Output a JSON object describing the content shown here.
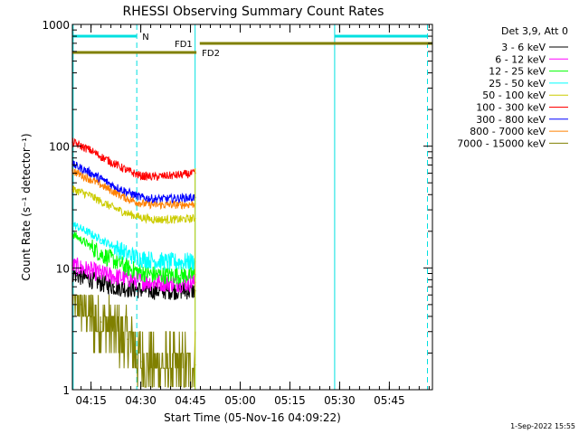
{
  "chart_data": {
    "type": "line",
    "title": "RHESSI Observing Summary Count Rates",
    "xlabel": "Start Time (05-Nov-16 04:09:22)",
    "ylabel": "Count Rate (s⁻¹ detector⁻¹)",
    "yscale": "log",
    "ylim": [
      1,
      1000
    ],
    "xlim_min": [
      249.37,
      358.0
    ],
    "x_unit": "minutes after 00:00 UT",
    "y_ticks": [
      {
        "v": 1,
        "label": "1"
      },
      {
        "v": 10,
        "label": "10"
      },
      {
        "v": 100,
        "label": "100"
      },
      {
        "v": 1000,
        "label": "1000"
      }
    ],
    "x_ticks": [
      {
        "v": 255,
        "label": "04:15"
      },
      {
        "v": 270,
        "label": "04:30"
      },
      {
        "v": 285,
        "label": "04:45"
      },
      {
        "v": 300,
        "label": "05:00"
      },
      {
        "v": 315,
        "label": "05:15"
      },
      {
        "v": 330,
        "label": "05:30"
      },
      {
        "v": 345,
        "label": "05:45"
      }
    ],
    "legend_header": "Det 3,9, Att 0",
    "legend_position": "top-right",
    "series": [
      {
        "name": "3 - 6 keV",
        "color": "#000000",
        "t": [
          249.4,
          252,
          255,
          258,
          262,
          266,
          270,
          274,
          278,
          282,
          286.4
        ],
        "values": [
          9,
          8.5,
          8,
          7.5,
          7,
          6.8,
          6.6,
          6.5,
          6.5,
          6.5,
          6.5
        ]
      },
      {
        "name": "6 - 12 keV",
        "color": "#ff00ff",
        "t": [
          249.4,
          252,
          255,
          258,
          262,
          266,
          270,
          274,
          278,
          282,
          286.4
        ],
        "values": [
          10.5,
          10,
          9.5,
          9,
          8.5,
          8.2,
          7.8,
          7.6,
          7.5,
          7.5,
          7.6
        ]
      },
      {
        "name": "12 - 25 keV",
        "color": "#00ff00",
        "t": [
          249.4,
          252,
          255,
          258,
          262,
          266,
          270,
          274,
          278,
          282,
          286.4
        ],
        "values": [
          19,
          17,
          15,
          13,
          11.5,
          10,
          9.2,
          8.8,
          8.7,
          8.7,
          8.8
        ]
      },
      {
        "name": "25 - 50 keV",
        "color": "#00ffff",
        "t": [
          249.4,
          252,
          255,
          258,
          262,
          266,
          270,
          274,
          278,
          282,
          286.4
        ],
        "values": [
          23,
          21,
          19,
          17,
          15,
          13,
          12,
          11.5,
          11.2,
          11.2,
          11.3
        ]
      },
      {
        "name": "50 - 100 keV",
        "color": "#cccc00",
        "t": [
          249.4,
          252,
          255,
          258,
          262,
          266,
          270,
          274,
          278,
          282,
          286.4
        ],
        "values": [
          44,
          42,
          39,
          35,
          31,
          28,
          26,
          25,
          25,
          25,
          25.5
        ]
      },
      {
        "name": "100 - 300 keV",
        "color": "#ff0000",
        "t": [
          249.4,
          252,
          255,
          258,
          262,
          266,
          270,
          274,
          278,
          282,
          286.4
        ],
        "values": [
          108,
          100,
          92,
          82,
          72,
          63,
          57,
          56,
          57,
          58,
          60
        ]
      },
      {
        "name": "300 - 800 keV",
        "color": "#0000ff",
        "t": [
          249.4,
          252,
          255,
          258,
          262,
          266,
          270,
          274,
          278,
          282,
          286.4
        ],
        "values": [
          71,
          66,
          60,
          54,
          47,
          42,
          38,
          37,
          37,
          37.5,
          38
        ]
      },
      {
        "name": "800 - 7000 keV",
        "color": "#ff8000",
        "t": [
          249.4,
          252,
          255,
          258,
          262,
          266,
          270,
          274,
          278,
          282,
          286.4
        ],
        "values": [
          63,
          58,
          53,
          48,
          42,
          37,
          34,
          33,
          33,
          33,
          33.5
        ]
      },
      {
        "name": "7000 - 15000 keV",
        "color": "#808000",
        "t": [
          249.4,
          252,
          255,
          258,
          262,
          266,
          268,
          270,
          274,
          278,
          282,
          286.4
        ],
        "values": [
          6,
          5,
          4,
          3.6,
          3,
          2.6,
          2.2,
          1.7,
          1.6,
          1.5,
          1.5,
          1.6
        ]
      }
    ],
    "annotations": {
      "night_label": "N",
      "night_intervals": [
        [
          249.37,
          268.8
        ],
        [
          328.5,
          356.5
        ]
      ],
      "fd1_label": "FD1",
      "fd1_interval": [
        287.8,
        358.0
      ],
      "fd2_label": "FD2",
      "fd2_interval": [
        249.37,
        286.8
      ],
      "vertical_lines": [
        {
          "t": 249.6,
          "style": "solid"
        },
        {
          "t": 268.8,
          "style": "dashed"
        },
        {
          "t": 286.4,
          "style": "solid"
        },
        {
          "t": 328.5,
          "style": "solid"
        },
        {
          "t": 356.5,
          "style": "dashed"
        }
      ]
    },
    "footer_date": "1-Sep-2022 15:55"
  }
}
